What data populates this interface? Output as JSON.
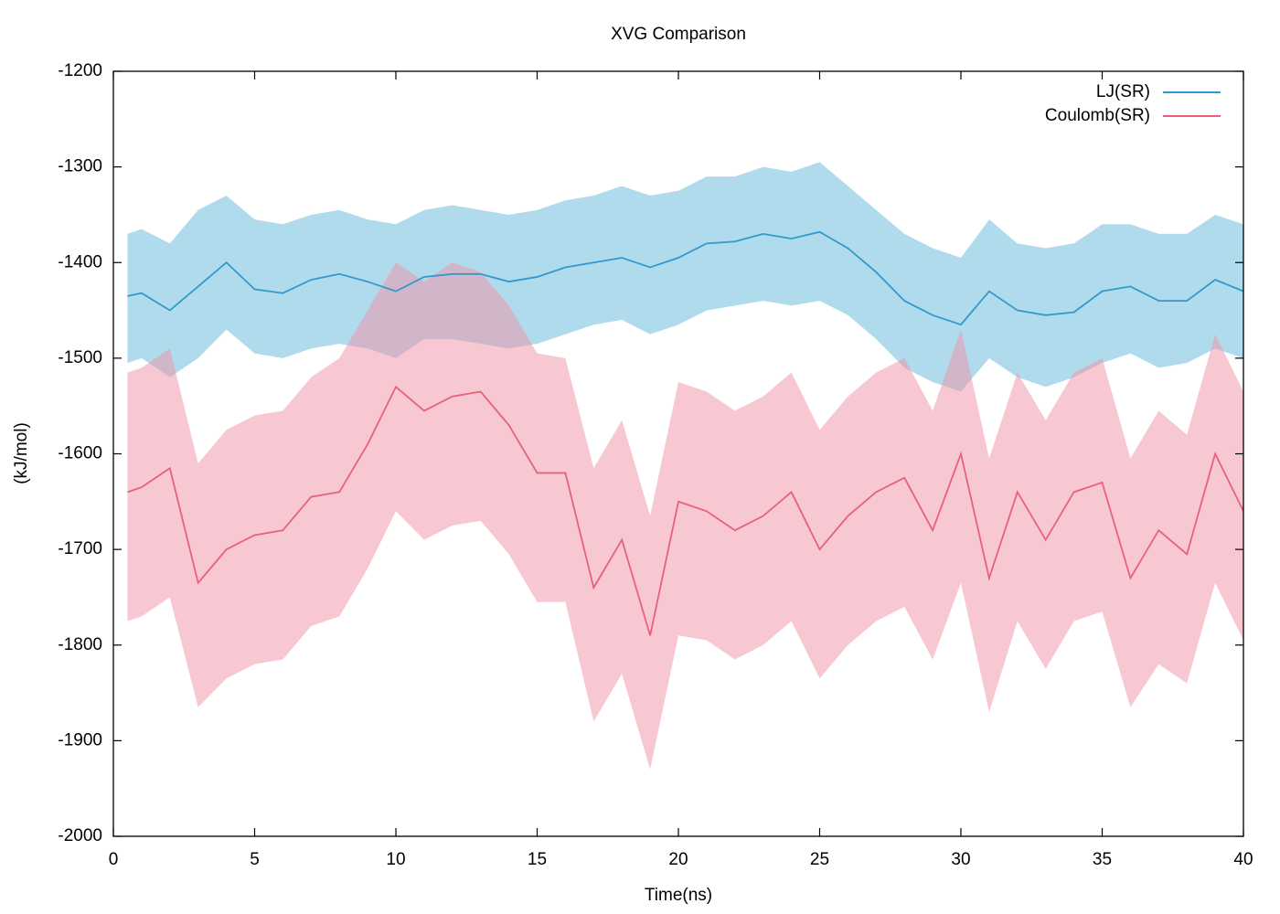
{
  "chart_data": {
    "type": "line",
    "title": "XVG Comparison",
    "x_label": "Time(ns)",
    "y_label": "(kJ/mol)",
    "x": [
      0.5,
      1,
      2,
      3,
      4,
      5,
      6,
      7,
      8,
      9,
      10,
      11,
      12,
      13,
      14,
      15,
      16,
      17,
      18,
      19,
      20,
      21,
      22,
      23,
      24,
      25,
      26,
      27,
      28,
      29,
      30,
      31,
      32,
      33,
      34,
      35,
      36,
      37,
      38,
      39,
      40
    ],
    "xlim": [
      0,
      40
    ],
    "xticks": [
      0,
      5,
      10,
      15,
      20,
      25,
      30,
      35,
      40
    ],
    "ylim": [
      -2000,
      -1200
    ],
    "yticks": [
      -2000,
      -1900,
      -1800,
      -1700,
      -1600,
      -1500,
      -1400,
      -1300,
      -1200
    ],
    "legend": "top-right",
    "series": [
      {
        "name": "LJ(SR)",
        "color": "#3399cc",
        "fill": "#86c8e2",
        "values": [
          -1435,
          -1432,
          -1450,
          -1425,
          -1400,
          -1428,
          -1432,
          -1418,
          -1412,
          -1420,
          -1430,
          -1415,
          -1412,
          -1412,
          -1420,
          -1415,
          -1405,
          -1400,
          -1395,
          -1405,
          -1395,
          -1380,
          -1378,
          -1370,
          -1375,
          -1368,
          -1385,
          -1410,
          -1440,
          -1455,
          -1465,
          -1430,
          -1450,
          -1455,
          -1452,
          -1430,
          -1425,
          -1440,
          -1440,
          -1418,
          -1430
        ],
        "upper": [
          -1370,
          -1365,
          -1380,
          -1345,
          -1330,
          -1355,
          -1360,
          -1350,
          -1345,
          -1355,
          -1360,
          -1345,
          -1340,
          -1345,
          -1350,
          -1345,
          -1335,
          -1330,
          -1320,
          -1330,
          -1325,
          -1310,
          -1310,
          -1300,
          -1305,
          -1295,
          -1320,
          -1345,
          -1370,
          -1385,
          -1395,
          -1355,
          -1380,
          -1385,
          -1380,
          -1360,
          -1360,
          -1370,
          -1370,
          -1350,
          -1360
        ],
        "lower": [
          -1505,
          -1500,
          -1520,
          -1500,
          -1470,
          -1495,
          -1500,
          -1490,
          -1485,
          -1490,
          -1500,
          -1480,
          -1480,
          -1485,
          -1490,
          -1485,
          -1475,
          -1465,
          -1460,
          -1475,
          -1465,
          -1450,
          -1445,
          -1440,
          -1445,
          -1440,
          -1455,
          -1480,
          -1510,
          -1525,
          -1535,
          -1500,
          -1520,
          -1530,
          -1520,
          -1505,
          -1495,
          -1510,
          -1505,
          -1490,
          -1500
        ]
      },
      {
        "name": "Coulomb(SR)",
        "color": "#e8607a",
        "fill": "#f291a6",
        "values": [
          -1640,
          -1635,
          -1615,
          -1735,
          -1700,
          -1685,
          -1680,
          -1645,
          -1640,
          -1590,
          -1530,
          -1555,
          -1540,
          -1535,
          -1570,
          -1620,
          -1620,
          -1740,
          -1690,
          -1790,
          -1650,
          -1660,
          -1680,
          -1665,
          -1640,
          -1700,
          -1665,
          -1640,
          -1625,
          -1680,
          -1600,
          -1730,
          -1640,
          -1690,
          -1640,
          -1630,
          -1730,
          -1680,
          -1705,
          -1600,
          -1660
        ],
        "upper": [
          -1515,
          -1510,
          -1490,
          -1610,
          -1575,
          -1560,
          -1555,
          -1520,
          -1500,
          -1450,
          -1400,
          -1420,
          -1400,
          -1410,
          -1445,
          -1495,
          -1500,
          -1615,
          -1565,
          -1665,
          -1525,
          -1535,
          -1555,
          -1540,
          -1515,
          -1575,
          -1540,
          -1515,
          -1500,
          -1555,
          -1470,
          -1605,
          -1515,
          -1565,
          -1515,
          -1500,
          -1605,
          -1555,
          -1580,
          -1475,
          -1535
        ],
        "lower": [
          -1775,
          -1770,
          -1750,
          -1865,
          -1835,
          -1820,
          -1815,
          -1780,
          -1770,
          -1720,
          -1660,
          -1690,
          -1675,
          -1670,
          -1705,
          -1755,
          -1755,
          -1880,
          -1830,
          -1930,
          -1790,
          -1795,
          -1815,
          -1800,
          -1775,
          -1835,
          -1800,
          -1775,
          -1760,
          -1815,
          -1735,
          -1870,
          -1775,
          -1825,
          -1775,
          -1765,
          -1865,
          -1820,
          -1840,
          -1735,
          -1795
        ]
      }
    ]
  }
}
